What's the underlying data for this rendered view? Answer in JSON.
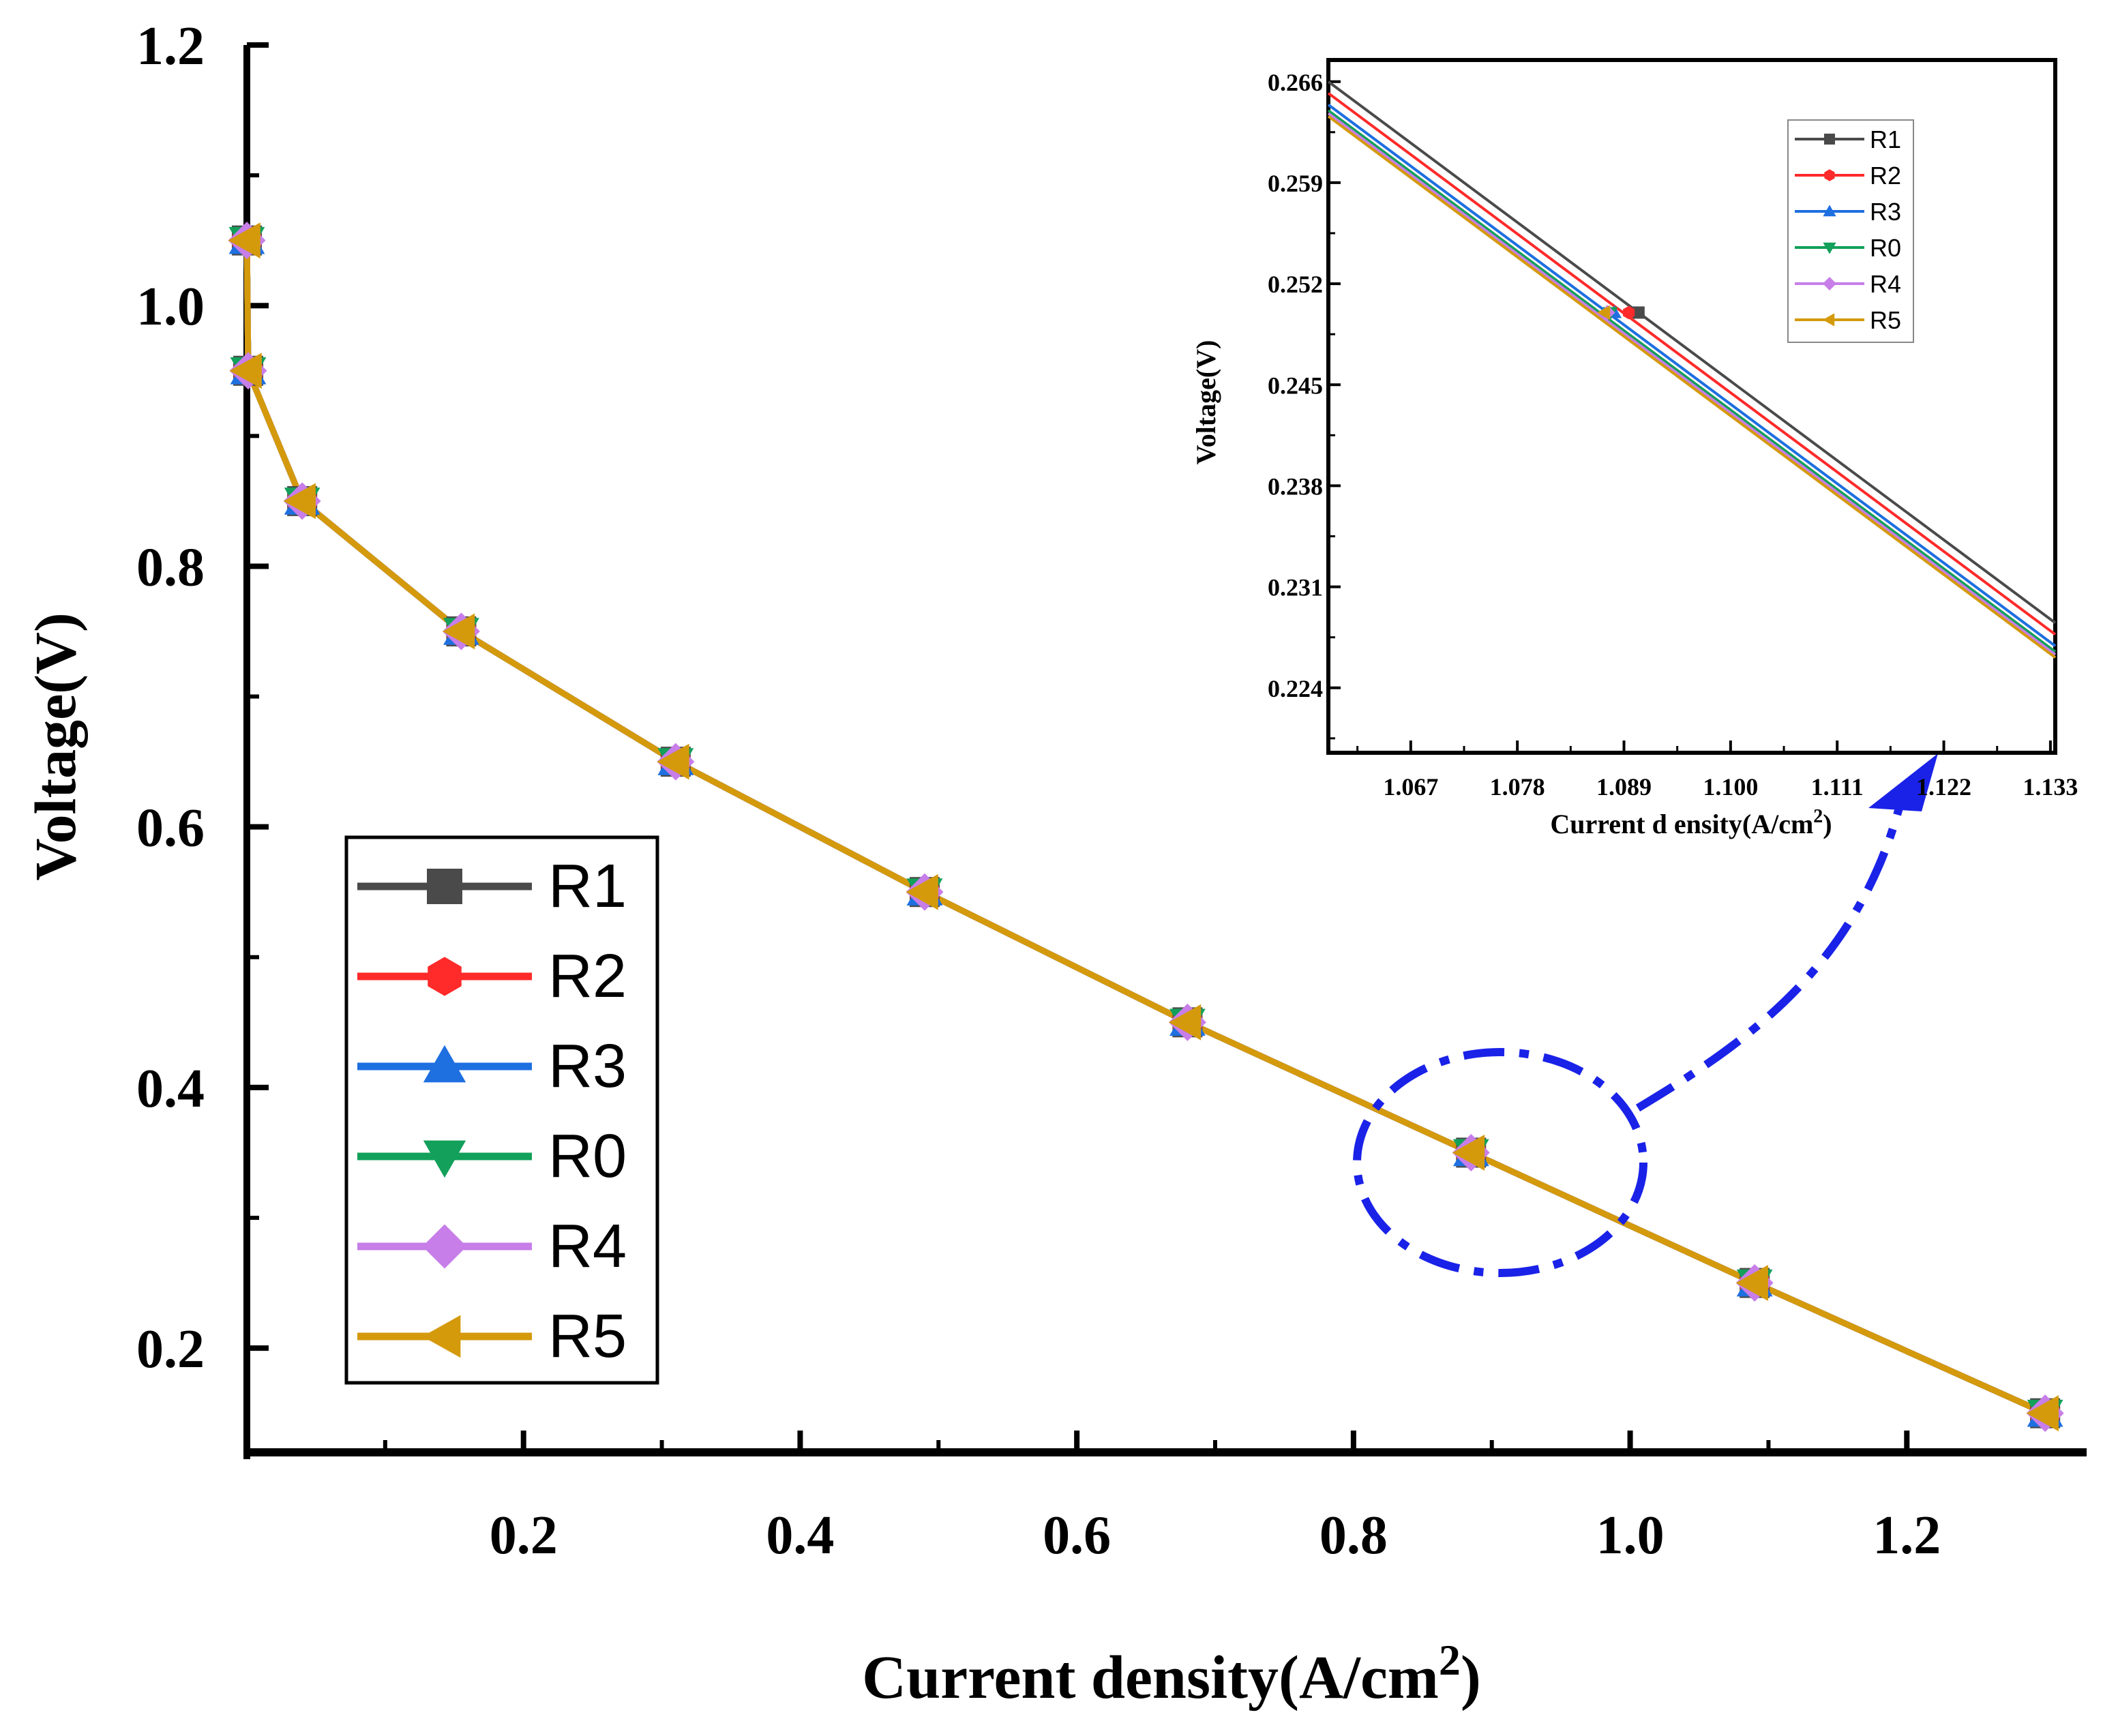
{
  "chart_data": [
    {
      "type": "line",
      "title": "",
      "xlabel": "Current density(A/cm",
      "xlabel_sup": "2",
      "xlabel_close": ")",
      "ylabel": "Voltage(V)",
      "xlim": [
        0.0,
        1.33
      ],
      "ylim": [
        0.12,
        1.2
      ],
      "xticks": [
        0.2,
        0.4,
        0.6,
        0.8,
        1.0,
        1.2
      ],
      "xtick_labels": [
        "0.2",
        "0.4",
        "0.6",
        "0.8",
        "1.0",
        "1.2"
      ],
      "yticks": [
        0.2,
        0.4,
        0.6,
        0.8,
        1.0,
        1.2
      ],
      "ytick_labels": [
        "0.2",
        "0.4",
        "0.6",
        "0.8",
        "1.0",
        "1.2"
      ],
      "legend_position": "bottom-left",
      "x": [
        0.0,
        0.001,
        0.04,
        0.155,
        0.31,
        0.49,
        0.68,
        0.885,
        1.09,
        1.3
      ],
      "series": [
        {
          "name": "R1",
          "color": "#4a4a4a",
          "marker": "square",
          "values": [
            1.05,
            0.95,
            0.85,
            0.75,
            0.65,
            0.55,
            0.45,
            0.35,
            0.25,
            0.15
          ]
        },
        {
          "name": "R2",
          "color": "#ff2a2a",
          "marker": "circle",
          "values": [
            1.05,
            0.95,
            0.85,
            0.75,
            0.65,
            0.55,
            0.45,
            0.35,
            0.25,
            0.15
          ]
        },
        {
          "name": "R3",
          "color": "#1e6fe0",
          "marker": "triangle-up",
          "values": [
            1.05,
            0.95,
            0.85,
            0.75,
            0.65,
            0.55,
            0.45,
            0.35,
            0.25,
            0.15
          ]
        },
        {
          "name": "R0",
          "color": "#12a05a",
          "marker": "triangle-down",
          "values": [
            1.05,
            0.95,
            0.85,
            0.75,
            0.65,
            0.55,
            0.45,
            0.35,
            0.25,
            0.15
          ]
        },
        {
          "name": "R4",
          "color": "#c77ee8",
          "marker": "diamond",
          "values": [
            1.05,
            0.95,
            0.85,
            0.75,
            0.65,
            0.55,
            0.45,
            0.35,
            0.25,
            0.15
          ]
        },
        {
          "name": "R5",
          "color": "#d49a0c",
          "marker": "triangle-left",
          "values": [
            1.05,
            0.95,
            0.85,
            0.75,
            0.65,
            0.55,
            0.45,
            0.35,
            0.25,
            0.15
          ]
        }
      ],
      "annotation": "dashed ellipse around x≈0.92, V≈0.34 with arrow pointing to inset"
    },
    {
      "type": "line",
      "role": "inset",
      "title": "",
      "xlabel": "Current d ensity(A/cm",
      "xlabel_sup": "2",
      "xlabel_close": ")",
      "ylabel": "Voltage(V)",
      "xlim": [
        1.0585,
        1.1335
      ],
      "ylim": [
        0.2195,
        0.2675
      ],
      "xticks": [
        1.067,
        1.078,
        1.089,
        1.1,
        1.111,
        1.122,
        1.133
      ],
      "xtick_labels": [
        "1.067",
        "1.078",
        "1.089",
        "1.100",
        "1.111",
        "1.122",
        "1.133"
      ],
      "yticks": [
        0.224,
        0.231,
        0.238,
        0.245,
        0.252,
        0.259,
        0.266
      ],
      "ytick_labels": [
        "0.224",
        "0.231",
        "0.238",
        "0.245",
        "0.252",
        "0.259",
        "0.266"
      ],
      "legend_position": "top-right",
      "series": [
        {
          "name": "R1",
          "color": "#4a4a4a",
          "marker": "square",
          "x": [
            1.0585,
            1.1335
          ],
          "values": [
            0.266,
            0.2285
          ],
          "marker_x": 1.0905,
          "marker_y": 0.25
        },
        {
          "name": "R2",
          "color": "#ff2a2a",
          "marker": "circle",
          "x": [
            1.0585,
            1.1335
          ],
          "values": [
            0.2652,
            0.2277
          ],
          "marker_x": 1.0895,
          "marker_y": 0.25
        },
        {
          "name": "R3",
          "color": "#1e6fe0",
          "marker": "triangle-up",
          "x": [
            1.0585,
            1.1335
          ],
          "values": [
            0.2644,
            0.2269
          ],
          "marker_x": 1.088,
          "marker_y": 0.25
        },
        {
          "name": "R0",
          "color": "#12a05a",
          "marker": "triangle-down",
          "x": [
            1.0585,
            1.1335
          ],
          "values": [
            0.264,
            0.2265
          ],
          "marker_x": 1.0876,
          "marker_y": 0.25
        },
        {
          "name": "R4",
          "color": "#c77ee8",
          "marker": "diamond",
          "x": [
            1.0585,
            1.1335
          ],
          "values": [
            0.2638,
            0.2263
          ],
          "marker_x": 1.0873,
          "marker_y": 0.25
        },
        {
          "name": "R5",
          "color": "#d49a0c",
          "marker": "triangle-left",
          "x": [
            1.0585,
            1.1335
          ],
          "values": [
            0.2636,
            0.2261
          ],
          "marker_x": 1.087,
          "marker_y": 0.25
        }
      ]
    }
  ]
}
